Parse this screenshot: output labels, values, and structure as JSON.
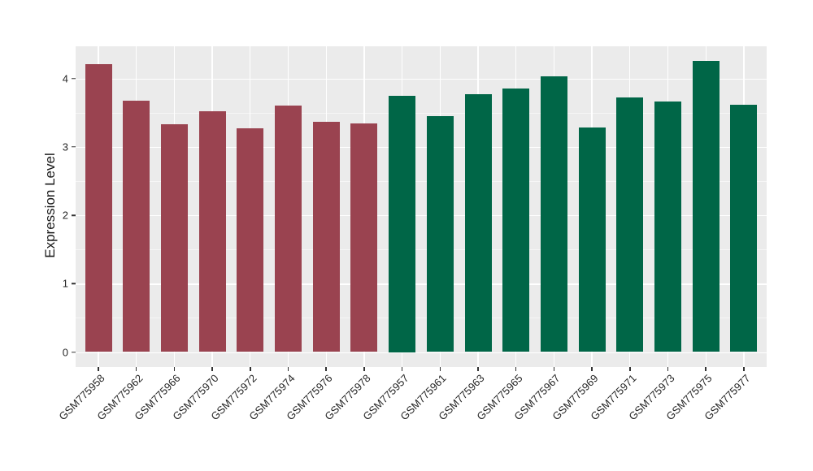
{
  "chart_data": {
    "type": "bar",
    "title": "",
    "xlabel": "",
    "ylabel": "Expression Level",
    "ylim": [
      0,
      4.47
    ],
    "yticks": [
      0,
      1,
      2,
      3,
      4
    ],
    "grid": true,
    "legend_position": "none",
    "panel_background": "#EBEBEB",
    "gridline_color": "#FFFFFF",
    "categories": [
      "GSM775958",
      "GSM775962",
      "GSM775966",
      "GSM775970",
      "GSM775972",
      "GSM775974",
      "GSM775976",
      "GSM775978",
      "GSM775957",
      "GSM775961",
      "GSM775963",
      "GSM775965",
      "GSM775967",
      "GSM775969",
      "GSM775971",
      "GSM775973",
      "GSM775975",
      "GSM775977"
    ],
    "values": [
      4.21,
      3.67,
      3.33,
      3.52,
      3.27,
      3.6,
      3.37,
      3.34,
      3.75,
      3.45,
      3.77,
      3.85,
      4.03,
      3.28,
      3.72,
      3.66,
      4.26,
      3.61
    ],
    "bar_groups": [
      "maroon",
      "maroon",
      "maroon",
      "maroon",
      "maroon",
      "maroon",
      "maroon",
      "maroon",
      "green",
      "green",
      "green",
      "green",
      "green",
      "green",
      "green",
      "green",
      "green",
      "green"
    ],
    "group_colors": {
      "maroon": "#9A4350",
      "green": "#006647"
    }
  }
}
